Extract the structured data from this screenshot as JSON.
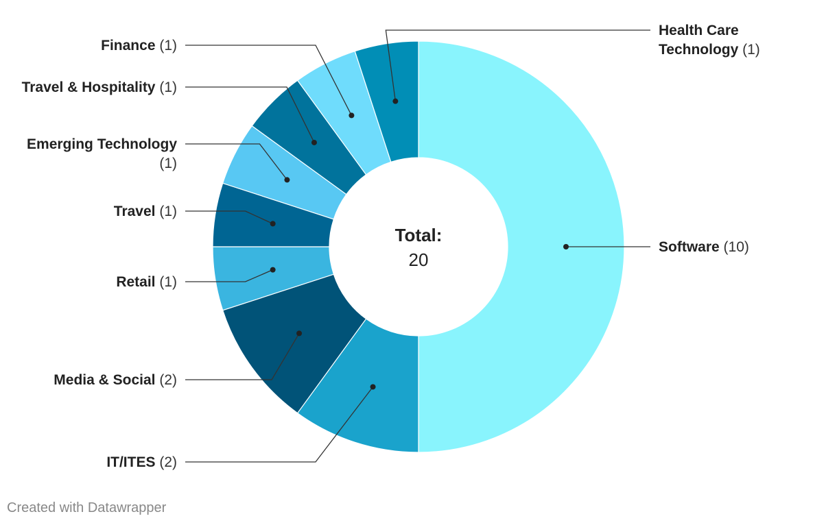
{
  "chart_data": {
    "type": "pie",
    "title": "",
    "slices": [
      {
        "label": "Software",
        "value": 10,
        "color": "#89f4fd"
      },
      {
        "label": "IT/ITES",
        "value": 2,
        "color": "#1aa3cc"
      },
      {
        "label": "Media & Social",
        "value": 2,
        "color": "#015378"
      },
      {
        "label": "Retail",
        "value": 1,
        "color": "#3ab5e0"
      },
      {
        "label": "Travel",
        "value": 1,
        "color": "#006593"
      },
      {
        "label": "Emerging Technology",
        "value": 1,
        "color": "#58c8f3"
      },
      {
        "label": "Travel & Hospitality",
        "value": 1,
        "color": "#01739c"
      },
      {
        "label": "Finance",
        "value": 1,
        "color": "#6fdcfc"
      },
      {
        "label": "Health Care Technology",
        "value": 1,
        "color": "#018eb6"
      }
    ],
    "center": {
      "title": "Total:",
      "value": "20"
    }
  },
  "footer": {
    "credit": "Created with Datawrapper"
  }
}
